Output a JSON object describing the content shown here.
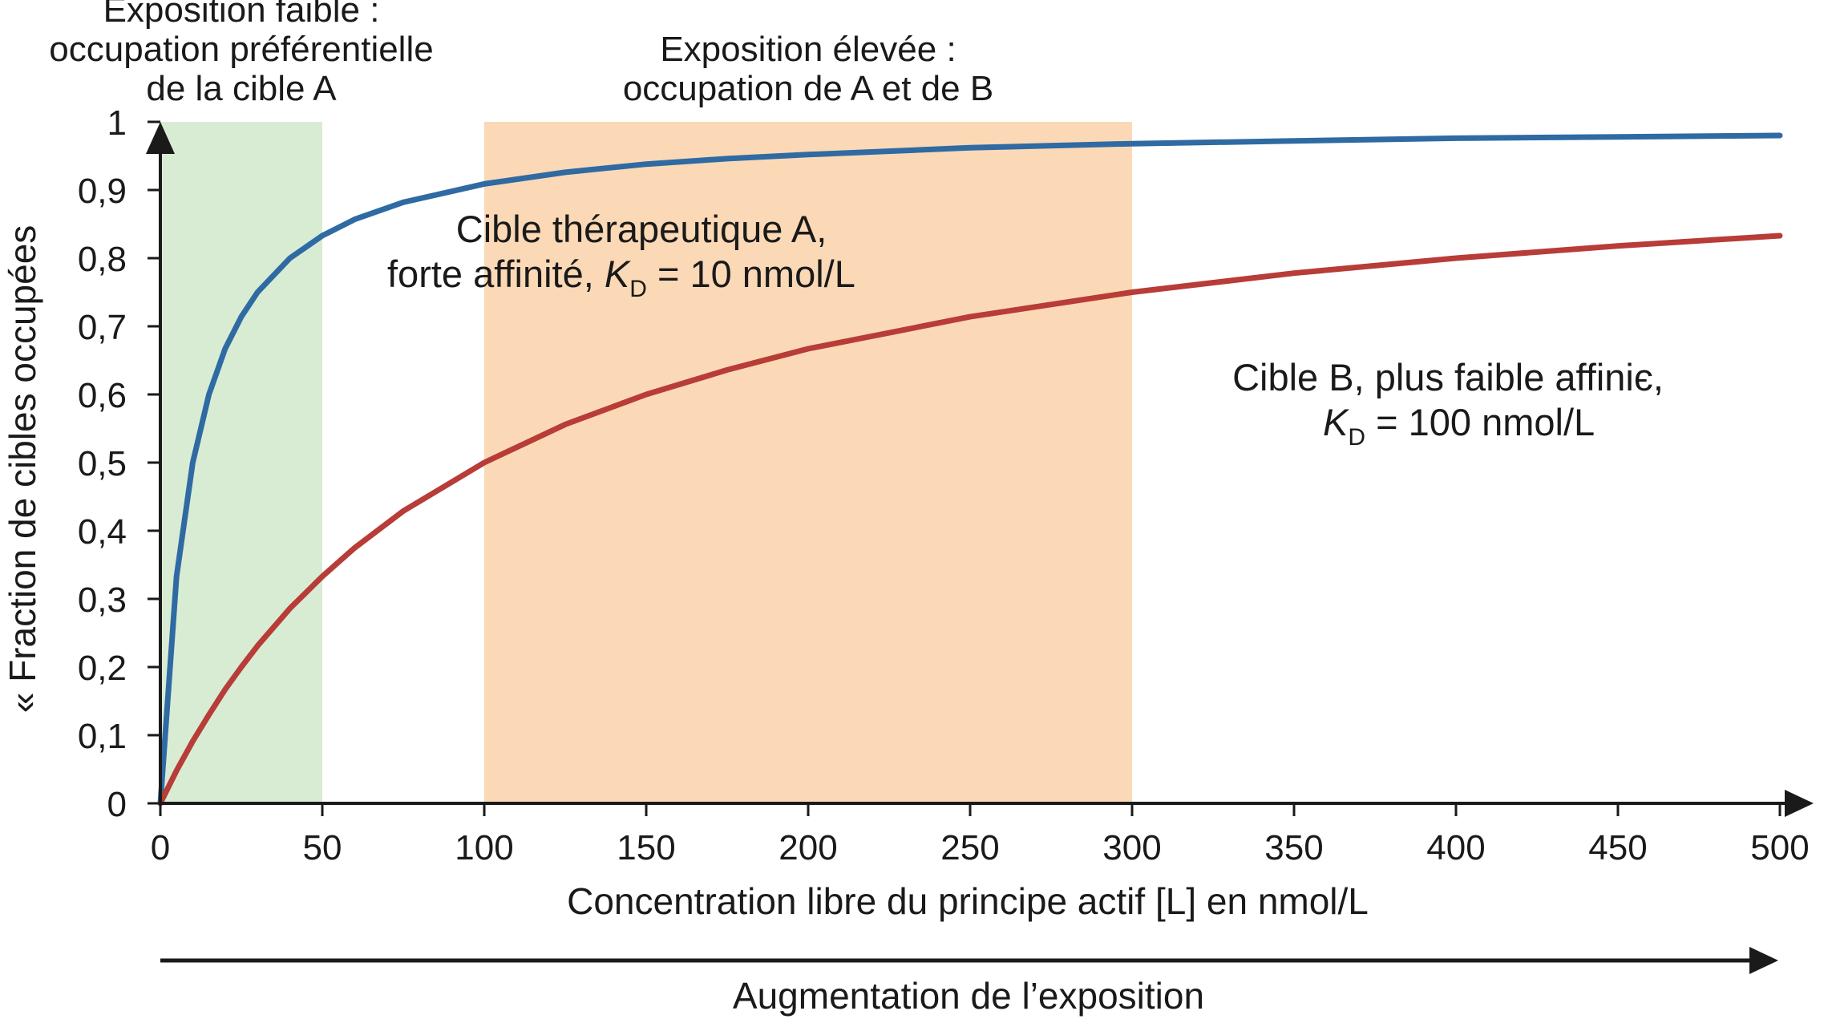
{
  "chart_data": {
    "type": "line",
    "xlabel": "Concentration libre du principe actif [L] en nmol/L",
    "ylabel": "« Fraction de cibles occupées",
    "xlim": [
      0,
      500
    ],
    "ylim": [
      0,
      1
    ],
    "x_ticks": [
      "0",
      "50",
      "100",
      "150",
      "200",
      "250",
      "300",
      "350",
      "400",
      "450",
      "500"
    ],
    "y_ticks": [
      "0",
      "0,1",
      "0,2",
      "0,3",
      "0,4",
      "0,5",
      "0,6",
      "0,7",
      "0,8",
      "0,9",
      "1"
    ],
    "x": [
      0,
      5,
      10,
      15,
      20,
      25,
      30,
      40,
      50,
      60,
      75,
      100,
      125,
      150,
      175,
      200,
      250,
      300,
      350,
      400,
      450,
      500
    ],
    "series": [
      {
        "values": [
          0,
          0.333,
          0.5,
          0.6,
          0.667,
          0.714,
          0.75,
          0.8,
          0.833,
          0.857,
          0.882,
          0.909,
          0.926,
          0.938,
          0.946,
          0.952,
          0.962,
          0.968,
          0.972,
          0.976,
          0.978,
          0.98
        ],
        "color": "#2f6aa3"
      },
      {
        "values": [
          0,
          0.048,
          0.091,
          0.13,
          0.167,
          0.2,
          0.231,
          0.286,
          0.333,
          0.375,
          0.429,
          0.5,
          0.556,
          0.6,
          0.636,
          0.667,
          0.714,
          0.75,
          0.778,
          0.8,
          0.818,
          0.833
        ],
        "color": "#b83c37"
      }
    ],
    "regions": [
      {
        "x_range": [
          0,
          50
        ],
        "color": "#d8ecd3",
        "label_lines": [
          "Exposition faible :",
          "occupation préférentielle",
          "de la cible A"
        ]
      },
      {
        "x_range": [
          100,
          300
        ],
        "color": "#fbd9b6",
        "label_lines": [
          "Exposition élevée :",
          "occupation de A et de B"
        ]
      }
    ],
    "annotations": {
      "curve_a": {
        "line1": "Cible thérapeutique A,",
        "line2_prefix": "forte affinité, ",
        "kd_symbol": "K",
        "kd_sub": "D",
        "line2_suffix": " = 10 nmol/L"
      },
      "curve_b": {
        "line1": "Cible B,   plus faible affiniє,",
        "kd_symbol": "K",
        "kd_sub": "D",
        "line2_suffix": " = 100 nmol/L"
      }
    },
    "exposure_arrow_label": "Augmentation de l’exposition",
    "grid": false,
    "legend": "none"
  }
}
